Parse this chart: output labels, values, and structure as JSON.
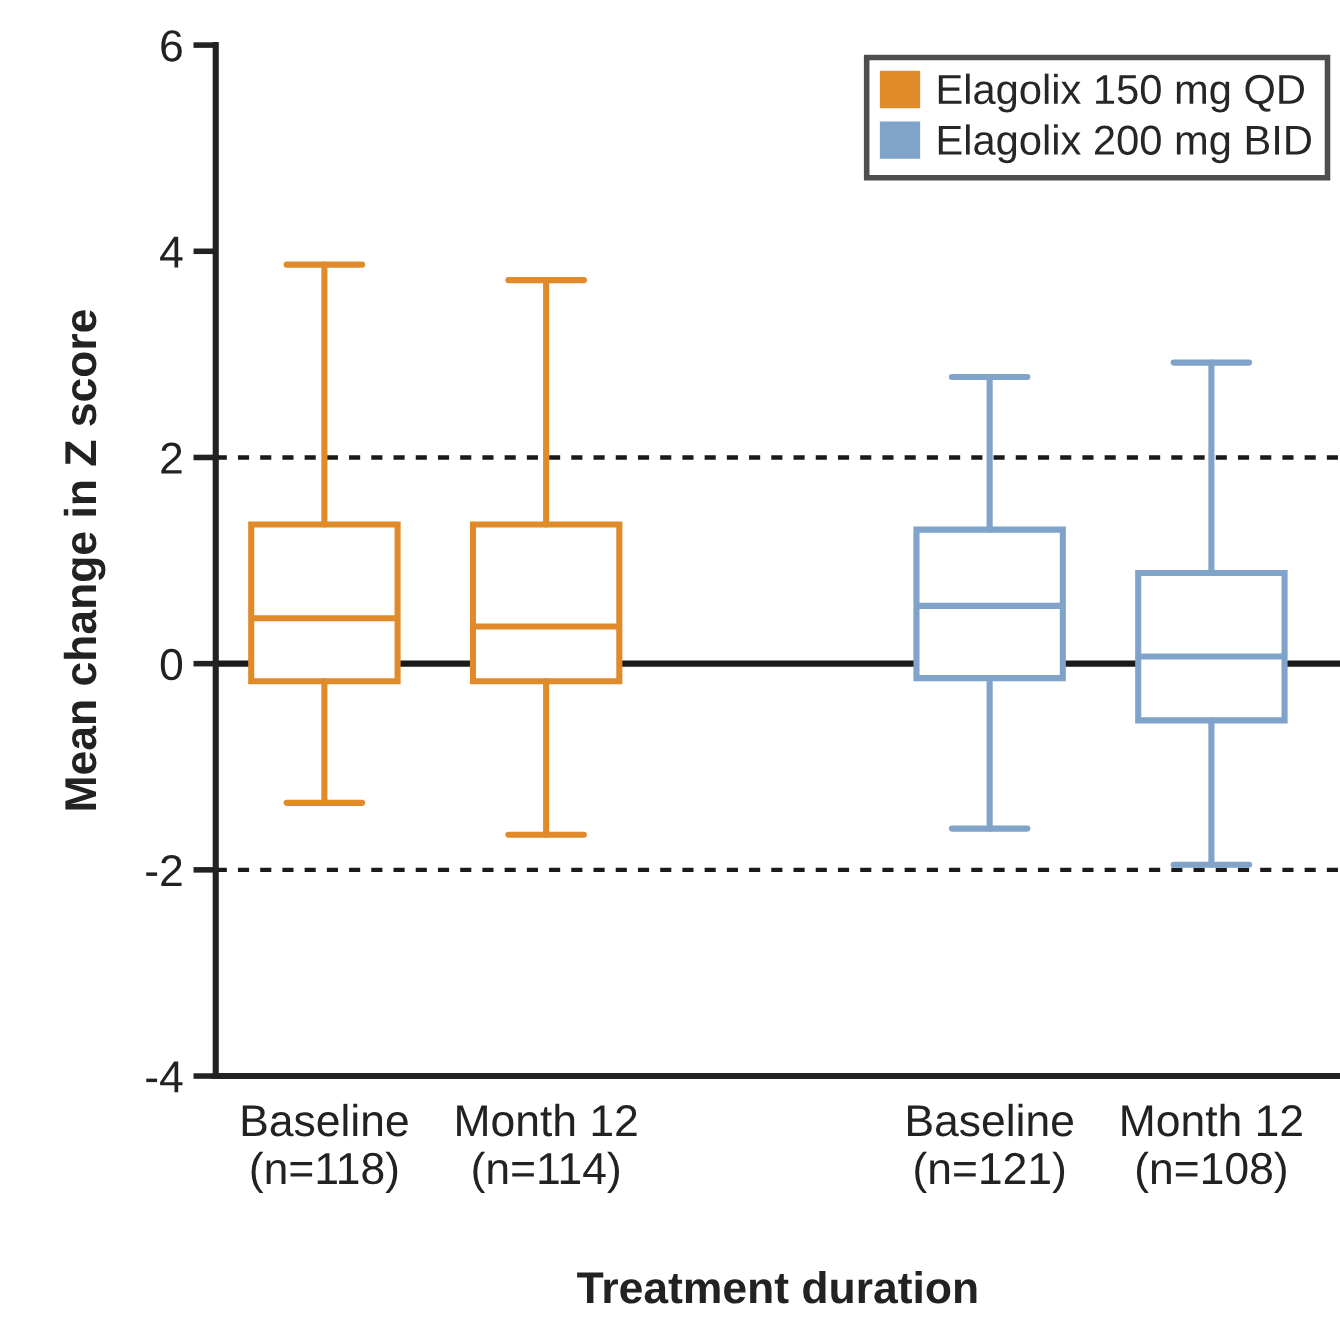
{
  "chart_data": {
    "type": "box",
    "xlabel": "Treatment duration",
    "ylabel": "Mean change in Z score",
    "categories": [
      "Baseline\n(n=118)",
      "Month 12\n(n=114)",
      "Baseline\n(n=121)",
      "Month 12\n(n=108)"
    ],
    "series": [
      {
        "name": "Elagolix 150 mg QD",
        "color": "#e08a2a",
        "boxes": [
          {
            "low": -1.35,
            "q1": -0.17,
            "median": 0.44,
            "q3": 1.35,
            "high": 3.87
          },
          {
            "low": -1.66,
            "q1": -0.17,
            "median": 0.36,
            "q3": 1.35,
            "high": 3.72
          },
          null,
          null
        ]
      },
      {
        "name": "Elagolix 200 mg BID",
        "color": "#7fa3c9",
        "boxes": [
          null,
          null,
          {
            "low": -1.6,
            "q1": -0.14,
            "median": 0.56,
            "q3": 1.3,
            "high": 2.78
          },
          {
            "low": -1.95,
            "q1": -0.55,
            "median": 0.07,
            "q3": 0.88,
            "high": 2.92
          }
        ]
      }
    ],
    "ylim": [
      -4,
      6
    ],
    "yticks": [
      -4,
      -2,
      0,
      2,
      4,
      6
    ],
    "ref_lines": [
      {
        "axis": "y",
        "value": 2,
        "line_style": "dashed",
        "color": "#1a1a1a"
      },
      {
        "axis": "y",
        "value": -2,
        "line_style": "dashed",
        "color": "#1a1a1a"
      },
      {
        "axis": "y",
        "value": 0,
        "line_style": "solid",
        "color": "#1a1a1a"
      }
    ],
    "legend": "top right",
    "grid": false
  }
}
